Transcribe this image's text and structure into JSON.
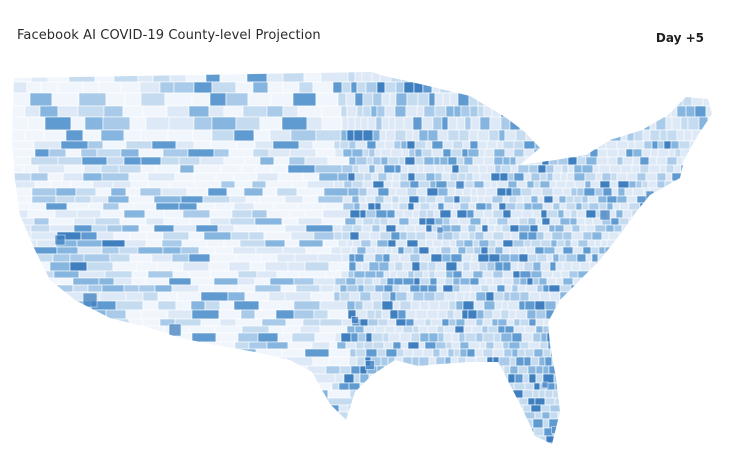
{
  "header": {
    "title": "Facebook AI COVID-19 County-level Projection",
    "day_label": "Day +5"
  },
  "map": {
    "region": "United States (contiguous)",
    "granularity": "county",
    "color_scale": [
      "#f1f5fc",
      "#dde9f6",
      "#c5dcf0",
      "#a9cbe9",
      "#86b6df",
      "#5f9ad0",
      "#3f7fbf"
    ],
    "border_color": "#ffffff"
  }
}
